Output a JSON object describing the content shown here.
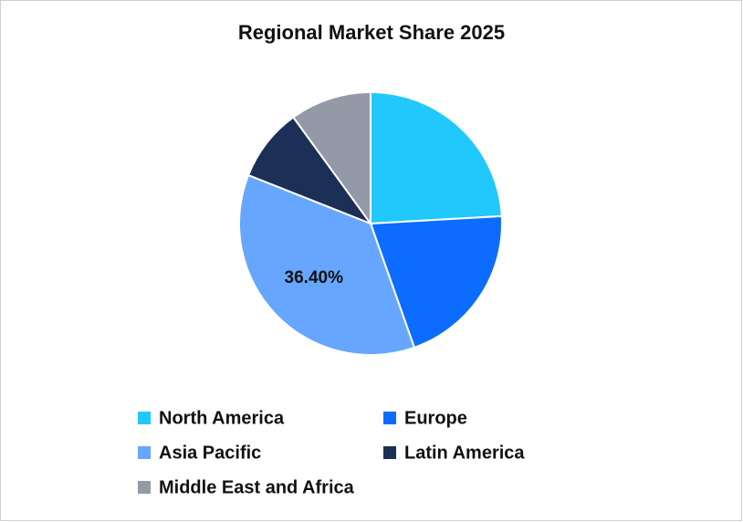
{
  "chart_data": {
    "type": "pie",
    "title": "Regional Market Share 2025",
    "categories": [
      "North America",
      "Europe",
      "Asia Pacific",
      "Latin America",
      "Middle East and Africa"
    ],
    "values": [
      24.1,
      20.5,
      36.4,
      9.0,
      10.0
    ],
    "value_labels": [
      null,
      null,
      "36.40%",
      null,
      null
    ],
    "colors": [
      "#20c8fc",
      "#0b6cff",
      "#66a6ff",
      "#1c2f56",
      "#9399a6"
    ]
  }
}
